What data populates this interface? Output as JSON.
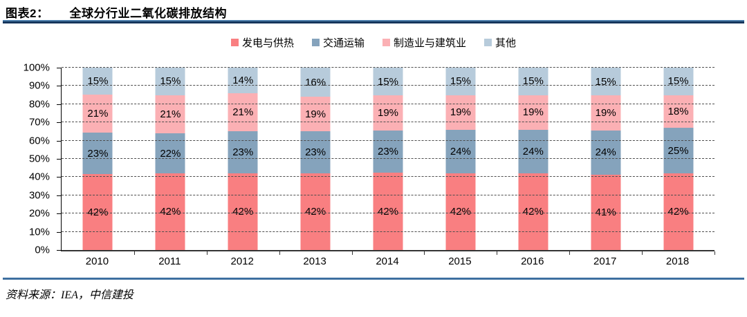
{
  "header": {
    "label": "图表2：",
    "title": "全球分行业二氧化碳排放结构"
  },
  "footer": {
    "source": "资料来源：IEA，中信建投"
  },
  "chart_data": {
    "type": "bar",
    "stacked": true,
    "percent_stack": true,
    "title": "全球分行业二氧化碳排放结构",
    "categories": [
      "2010",
      "2011",
      "2012",
      "2013",
      "2014",
      "2015",
      "2016",
      "2017",
      "2018"
    ],
    "series": [
      {
        "name": "发电与供热",
        "color": "#F97F81",
        "values": [
          42,
          42,
          42,
          42,
          42,
          42,
          42,
          41,
          42
        ]
      },
      {
        "name": "交通运输",
        "color": "#85A3BC",
        "values": [
          23,
          22,
          23,
          23,
          23,
          24,
          24,
          24,
          25
        ]
      },
      {
        "name": "制造业与建筑业",
        "color": "#FBB0B4",
        "values": [
          21,
          21,
          21,
          19,
          19,
          19,
          19,
          19,
          18
        ]
      },
      {
        "name": "其他",
        "color": "#B7CBDB",
        "values": [
          15,
          15,
          14,
          16,
          15,
          15,
          15,
          15,
          15
        ]
      }
    ],
    "ylim": [
      0,
      100
    ],
    "ytick_step": 10,
    "ytick_format": "percent",
    "xlabel": "",
    "ylabel": "",
    "grid": "dashed-horizontal",
    "legend_position": "top",
    "value_labels": "inside-center-percent"
  }
}
